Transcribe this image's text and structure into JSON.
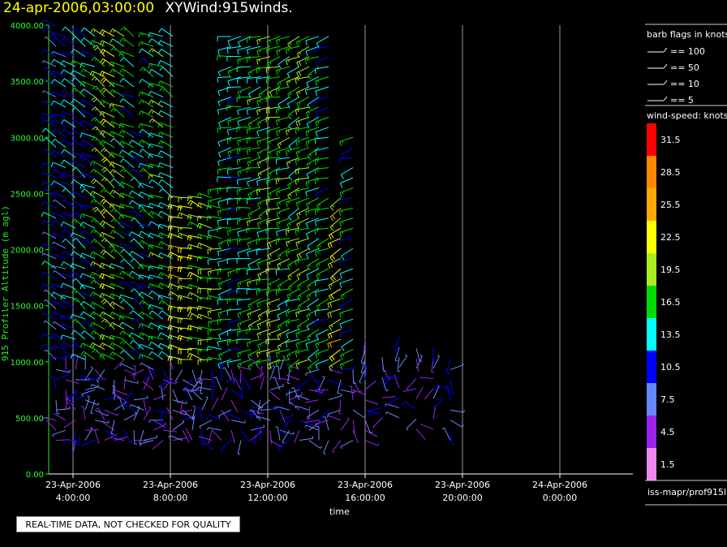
{
  "header": {
    "date_time": "24-apr-2006,03:00:00",
    "product": "XYWind:915winds."
  },
  "footer": {
    "qc_note": "REAL-TIME DATA, NOT CHECKED FOR QUALITY",
    "source": "iss-mapr/prof915l"
  },
  "chart_data": {
    "type": "wind-barb time-height plot",
    "ylabel": "915 Profiler Altitude (m agl)",
    "xlabel": "time",
    "ylim": [
      0,
      4000
    ],
    "yticks": [
      "0.00",
      "500.00",
      "1000.00",
      "1500.00",
      "2000.00",
      "2500.00",
      "3000.00",
      "3500.00",
      "4000.00"
    ],
    "xticks": [
      {
        "date": "23-Apr-2006",
        "time": "4:00:00"
      },
      {
        "date": "23-Apr-2006",
        "time": "8:00:00"
      },
      {
        "date": "23-Apr-2006",
        "time": "12:00:00"
      },
      {
        "date": "23-Apr-2006",
        "time": "16:00:00"
      },
      {
        "date": "23-Apr-2006",
        "time": "20:00:00"
      },
      {
        "date": "24-Apr-2006",
        "time": "0:00:00"
      }
    ],
    "xlim_hours": [
      3.0,
      27.0
    ],
    "grid": "vertical lines at x ticks",
    "barb_legend": {
      "title": "barb flags in knots",
      "entries": [
        "== 100",
        "== 50",
        "== 10",
        "== 5"
      ]
    },
    "speed_legend": {
      "title": "wind-speed: knots",
      "levels": [
        {
          "value": "31.5",
          "color": "#ff0000"
        },
        {
          "value": "28.5",
          "color": "#ff8800"
        },
        {
          "value": "25.5",
          "color": "#ffaa00"
        },
        {
          "value": "22.5",
          "color": "#ffff00"
        },
        {
          "value": "19.5",
          "color": "#aaee22"
        },
        {
          "value": "16.5",
          "color": "#00dd00"
        },
        {
          "value": "13.5",
          "color": "#00ffff"
        },
        {
          "value": "10.5",
          "color": "#0000ff"
        },
        {
          "value": "7.5",
          "color": "#6688ff"
        },
        {
          "value": "4.5",
          "color": "#9922ee"
        },
        {
          "value": "1.5",
          "color": "#ee88ee"
        }
      ]
    },
    "profiles": [
      {
        "hour": 3.3,
        "top": 4000,
        "start": 300,
        "speed": 10.5,
        "dir": 300
      },
      {
        "hour": 3.7,
        "top": 3950,
        "start": 300,
        "speed": 11,
        "dir": 295
      },
      {
        "hour": 4.1,
        "top": 3950,
        "start": 300,
        "speed": 12,
        "dir": 300
      },
      {
        "hour": 4.5,
        "top": 3900,
        "start": 300,
        "speed": 14,
        "dir": 305
      },
      {
        "hour": 4.9,
        "top": 3950,
        "start": 300,
        "speed": 13,
        "dir": 300
      },
      {
        "hour": 5.3,
        "top": 3950,
        "start": 300,
        "speed": 18,
        "dir": 310
      },
      {
        "hour": 5.7,
        "top": 3900,
        "start": 300,
        "speed": 20,
        "dir": 305
      },
      {
        "hour": 6.1,
        "top": 3950,
        "start": 300,
        "speed": 17,
        "dir": 300
      },
      {
        "hour": 6.5,
        "top": 3900,
        "start": 300,
        "speed": 14,
        "dir": 300
      },
      {
        "hour": 6.9,
        "top": 3000,
        "start": 300,
        "speed": 12,
        "dir": 310
      },
      {
        "hour": 7.3,
        "top": 3950,
        "start": 300,
        "speed": 14,
        "dir": 300
      },
      {
        "hour": 7.7,
        "top": 3950,
        "start": 300,
        "speed": 16,
        "dir": 295
      },
      {
        "hour": 8.1,
        "top": 3950,
        "start": 300,
        "speed": 15,
        "dir": 300
      },
      {
        "hour": 8.5,
        "top": 2500,
        "start": 300,
        "speed": 22,
        "dir": 290
      },
      {
        "hour": 8.9,
        "top": 2500,
        "start": 300,
        "speed": 21,
        "dir": 285
      },
      {
        "hour": 9.3,
        "top": 2500,
        "start": 300,
        "speed": 20,
        "dir": 290
      },
      {
        "hour": 9.7,
        "top": 2500,
        "start": 300,
        "speed": 18,
        "dir": 280
      },
      {
        "hour": 10.1,
        "top": 2600,
        "start": 300,
        "speed": 17,
        "dir": 270
      },
      {
        "hour": 10.5,
        "top": 3950,
        "start": 300,
        "speed": 15,
        "dir": 260
      },
      {
        "hour": 10.9,
        "top": 3950,
        "start": 300,
        "speed": 14,
        "dir": 265
      },
      {
        "hour": 11.3,
        "top": 3950,
        "start": 300,
        "speed": 15,
        "dir": 260
      },
      {
        "hour": 11.7,
        "top": 3950,
        "start": 300,
        "speed": 16,
        "dir": 255
      },
      {
        "hour": 12.1,
        "top": 3950,
        "start": 300,
        "speed": 17,
        "dir": 250
      },
      {
        "hour": 12.5,
        "top": 3950,
        "start": 300,
        "speed": 18,
        "dir": 255
      },
      {
        "hour": 12.9,
        "top": 3950,
        "start": 300,
        "speed": 16,
        "dir": 250
      },
      {
        "hour": 13.3,
        "top": 3950,
        "start": 300,
        "speed": 17,
        "dir": 245
      },
      {
        "hour": 13.7,
        "top": 3950,
        "start": 300,
        "speed": 18,
        "dir": 250
      },
      {
        "hour": 14.1,
        "top": 3950,
        "start": 300,
        "speed": 15,
        "dir": 245
      },
      {
        "hour": 14.5,
        "top": 3900,
        "start": 300,
        "speed": 14,
        "dir": 250
      },
      {
        "hour": 15.0,
        "top": 2500,
        "start": 300,
        "speed": 22,
        "dir": 240
      },
      {
        "hour": 15.5,
        "top": 3000,
        "start": 300,
        "speed": 14,
        "dir": 250
      },
      {
        "hour": 16.0,
        "top": 1200,
        "start": 300,
        "speed": 6,
        "dir": 200
      },
      {
        "hour": 16.7,
        "top": 1100,
        "start": 500,
        "speed": 5,
        "dir": 180
      },
      {
        "hour": 17.4,
        "top": 1300,
        "start": 500,
        "speed": 8,
        "dir": 190
      },
      {
        "hour": 18.1,
        "top": 1200,
        "start": 400,
        "speed": 6,
        "dir": 170
      },
      {
        "hour": 18.8,
        "top": 1200,
        "start": 400,
        "speed": 7,
        "dir": 180
      },
      {
        "hour": 19.5,
        "top": 1100,
        "start": 300,
        "speed": 9,
        "dir": 190
      }
    ]
  }
}
